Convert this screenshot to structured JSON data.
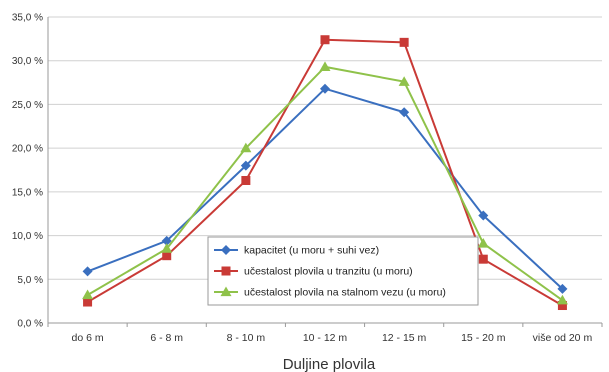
{
  "chart_data": {
    "type": "line",
    "title": "",
    "xlabel": "Duljine plovila",
    "ylabel": "",
    "ylim": [
      0,
      35
    ],
    "ytick_step": 5,
    "yticks": [
      "0,0 %",
      "5,0 %",
      "10,0 %",
      "15,0 %",
      "20,0 %",
      "25,0 %",
      "30,0 %",
      "35,0 %"
    ],
    "grid": true,
    "legend_position": "bottom-center",
    "categories": [
      "do 6 m",
      "6 - 8 m",
      "8 - 10 m",
      "10 - 12 m",
      "12 - 15 m",
      "15 - 20 m",
      "više od 20 m"
    ],
    "series": [
      {
        "name": "kapacitet (u moru + suhi vez)",
        "color": "#3a6fbf",
        "marker": "diamond",
        "values": [
          5.9,
          9.4,
          18.0,
          26.8,
          24.1,
          12.3,
          3.9
        ]
      },
      {
        "name": "učestalost plovila u tranzitu (u moru)",
        "color": "#c93a36",
        "marker": "square",
        "values": [
          2.4,
          7.7,
          16.3,
          32.4,
          32.1,
          7.3,
          2.0
        ]
      },
      {
        "name": "učestalost plovila na stalnom vezu (u moru)",
        "color": "#8fc24a",
        "marker": "triangle",
        "values": [
          3.2,
          8.5,
          20.0,
          29.3,
          27.6,
          9.1,
          2.6
        ]
      }
    ]
  }
}
